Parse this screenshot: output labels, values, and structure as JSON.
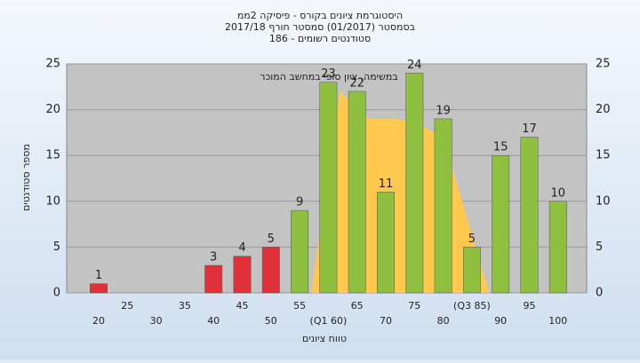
{
  "chart_data": {
    "type": "bar",
    "title": "היסטוגרמת ציונים בקורס - פיסיקה 2ממ",
    "subtitle": "בסמסטר (01/2017) סמסטר חורף 2017/18",
    "subtitle2": "186 - סטודנטים רשומים",
    "annotation": "במשימה, ציון סופי במחשב המוכר",
    "x_label": "טווח ציונים",
    "y_label": "מספר סטודנטים",
    "categories": [
      "20",
      "25",
      "30",
      "35",
      "40",
      "45",
      "50",
      "55",
      "(Q1 60)",
      "65",
      "70",
      "75",
      "80",
      "(Q3 85)",
      "90",
      "95",
      "100"
    ],
    "values": [
      1,
      0,
      0,
      0,
      3,
      4,
      5,
      9,
      23,
      22,
      11,
      24,
      19,
      5,
      15,
      17,
      10
    ],
    "colors": [
      "#e0303a",
      "#e0303a",
      "#e0303a",
      "#e0303a",
      "#e0303a",
      "#e0303a",
      "#e0303a",
      "#8fbf3f",
      "#8fbf3f",
      "#8fbf3f",
      "#8fbf3f",
      "#8fbf3f",
      "#8fbf3f",
      "#8fbf3f",
      "#8fbf3f",
      "#8fbf3f",
      "#8fbf3f"
    ],
    "area": {
      "color": "#ffc94d",
      "x": [
        57,
        62,
        67,
        72,
        77,
        80,
        88
      ],
      "values": [
        0,
        22,
        19,
        19,
        18,
        17,
        0
      ]
    },
    "ylim": [
      0,
      25
    ],
    "yticks": [
      0,
      5,
      10,
      15,
      20,
      25
    ],
    "grid": true
  }
}
